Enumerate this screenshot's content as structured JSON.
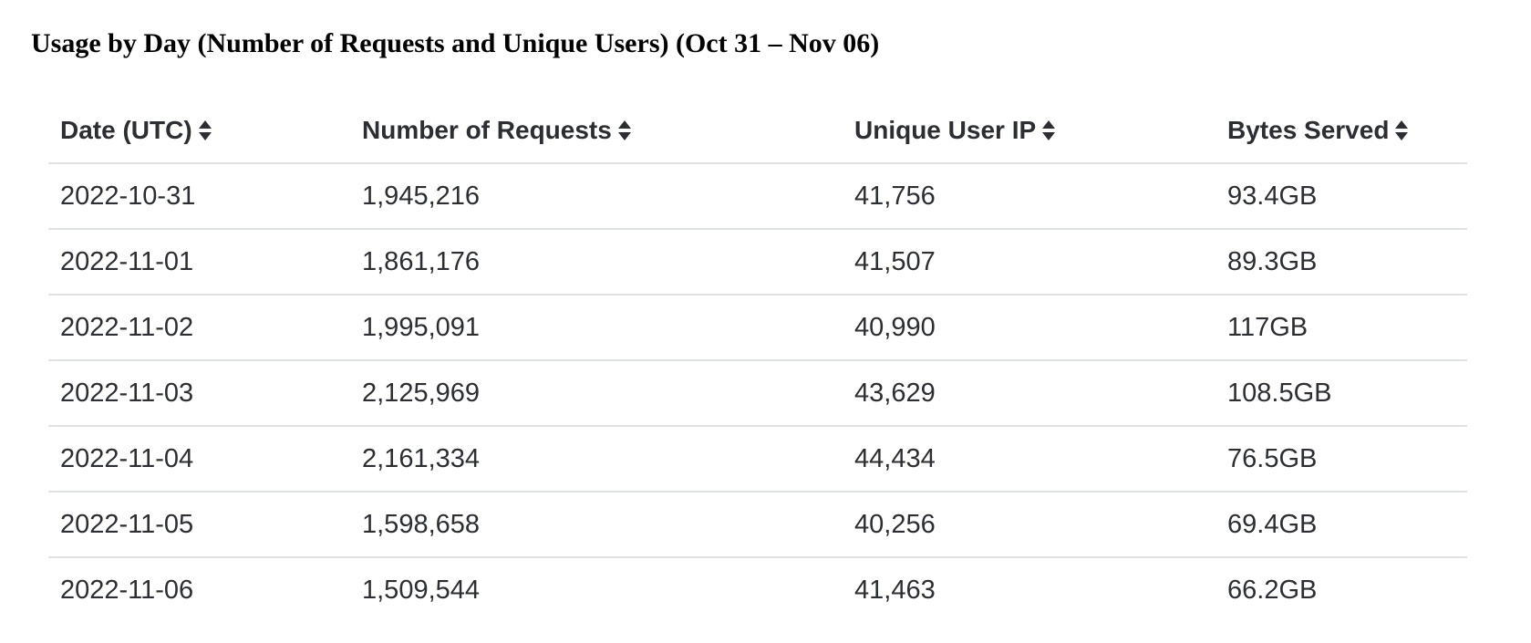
{
  "title": "Usage by Day (Number of Requests and Unique Users) (Oct 31 – Nov 06)",
  "table": {
    "headers": [
      {
        "label": "Date (UTC)",
        "icon": "sort-icon"
      },
      {
        "label": "Number of Requests",
        "icon": "sort-icon"
      },
      {
        "label": "Unique User IP",
        "icon": "sort-icon"
      },
      {
        "label": "Bytes Served",
        "icon": "sort-icon"
      }
    ],
    "rows": [
      [
        "2022-10-31",
        "1,945,216",
        "41,756",
        "93.4GB"
      ],
      [
        "2022-11-01",
        "1,861,176",
        "41,507",
        "89.3GB"
      ],
      [
        "2022-11-02",
        "1,995,091",
        "40,990",
        "117GB"
      ],
      [
        "2022-11-03",
        "2,125,969",
        "43,629",
        "108.5GB"
      ],
      [
        "2022-11-04",
        "2,161,334",
        "44,434",
        "76.5GB"
      ],
      [
        "2022-11-05",
        "1,598,658",
        "40,256",
        "69.4GB"
      ],
      [
        "2022-11-06",
        "1,509,544",
        "41,463",
        "66.2GB"
      ]
    ]
  },
  "colors": {
    "text": "#2b2f33",
    "divider": "#dee2e6",
    "title": "#000000"
  }
}
